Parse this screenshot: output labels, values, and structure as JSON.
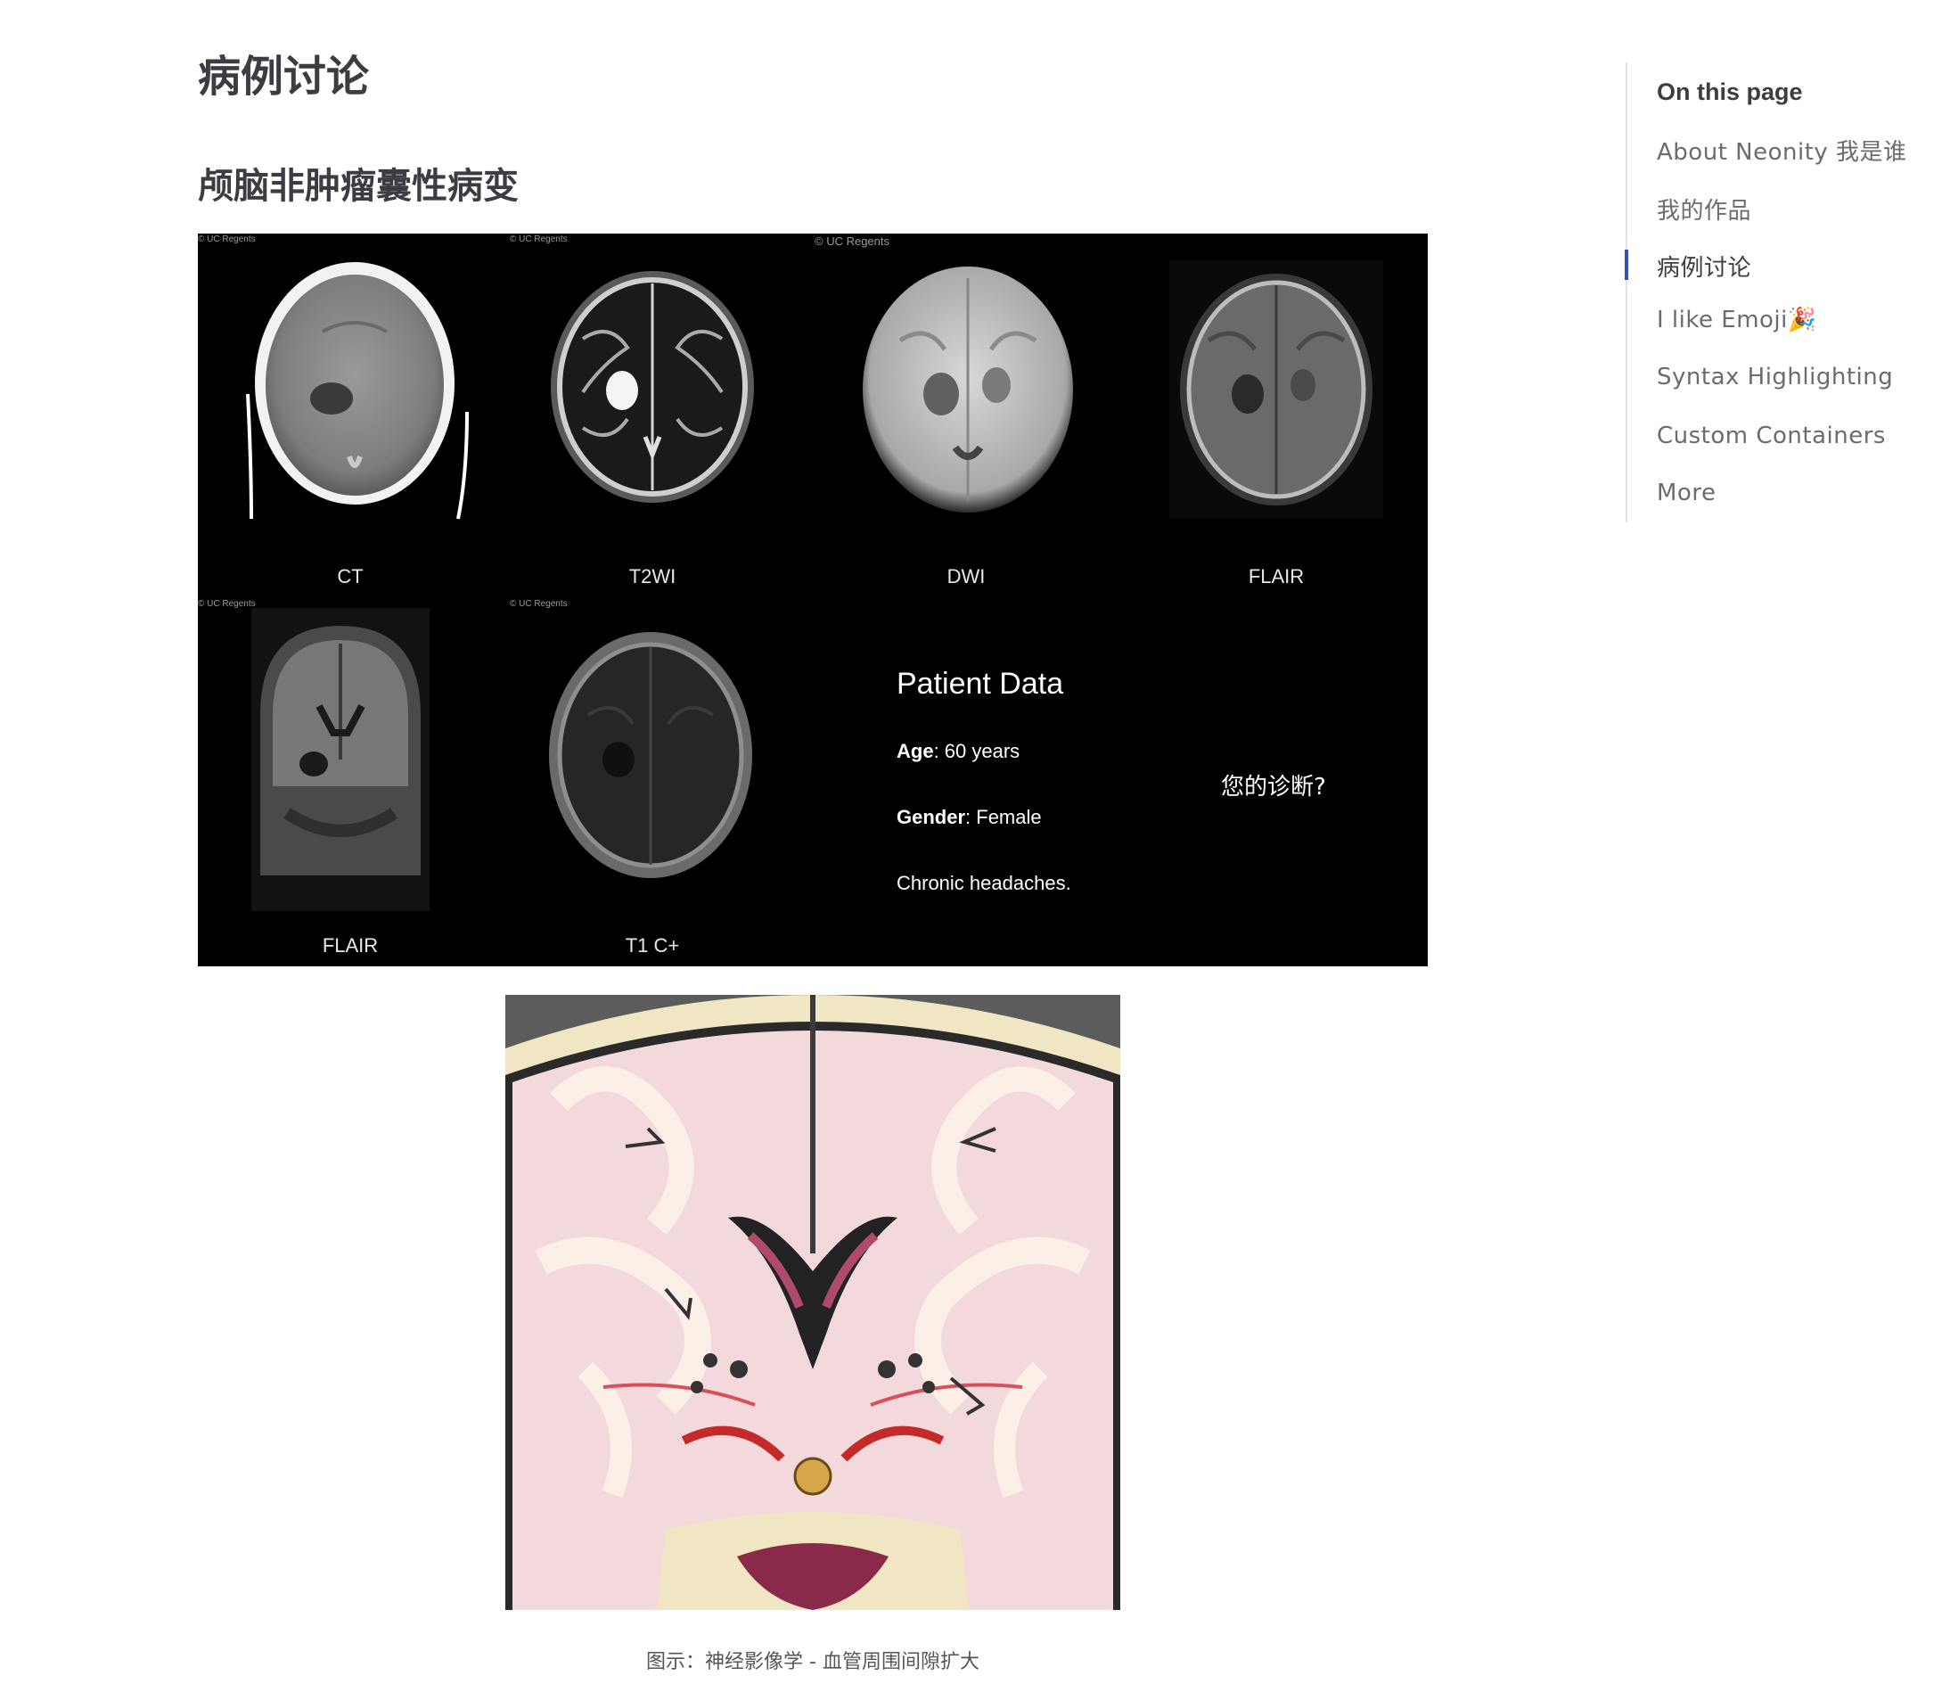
{
  "page": {
    "title": "病例讨论",
    "section_heading": "颅脑非肿瘤囊性病变",
    "caption": "图示：神经影像学 - 血管周围间隙扩大"
  },
  "case_image": {
    "watermark": "© UC Regents",
    "scans": [
      {
        "label": "CT"
      },
      {
        "label": "T2WI"
      },
      {
        "label": "DWI"
      },
      {
        "label": "FLAIR"
      },
      {
        "label": "FLAIR"
      },
      {
        "label": "T1 C+"
      }
    ],
    "patient_data": {
      "title": "Patient Data",
      "age_label": "Age",
      "age_value": ": 60 years",
      "gender_label": "Gender",
      "gender_value": ": Female",
      "history": "Chronic headaches."
    },
    "question": "您的诊断?"
  },
  "toc": {
    "title": "On this page",
    "active_index": 2,
    "items": [
      {
        "label": "About Neonity 我是谁"
      },
      {
        "label": "我的作品"
      },
      {
        "label": "病例讨论"
      },
      {
        "label": "I like Emoji🎉"
      },
      {
        "label": "Syntax Highlighting"
      },
      {
        "label": "Custom Containers"
      },
      {
        "label": "More"
      }
    ]
  }
}
